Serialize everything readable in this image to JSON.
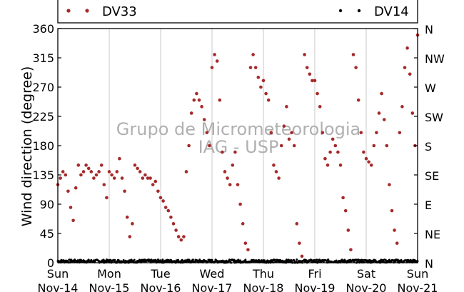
{
  "chart_data": {
    "type": "scatter",
    "ylabel": "Wind direction (degree)",
    "ylim": [
      0,
      360
    ],
    "yticks": [
      0,
      45,
      90,
      135,
      180,
      225,
      270,
      315,
      360
    ],
    "right_axis_labels": [
      "N",
      "NE",
      "E",
      "SE",
      "S",
      "SW",
      "W",
      "NW",
      "N"
    ],
    "x_ticks": [
      {
        "day": "Sun",
        "date": "Nov-14"
      },
      {
        "day": "Mon",
        "date": "Nov-15"
      },
      {
        "day": "Tue",
        "date": "Nov-16"
      },
      {
        "day": "Wed",
        "date": "Nov-17"
      },
      {
        "day": "Thu",
        "date": "Nov-18"
      },
      {
        "day": "Fri",
        "date": "Nov-19"
      },
      {
        "day": "Sat",
        "date": "Nov-20"
      },
      {
        "day": "Sun",
        "date": "Nov-21"
      }
    ],
    "xlim_days": [
      0,
      7
    ],
    "grid": "vertical",
    "legend_placement": "top",
    "watermark": [
      "Grupo de Micrometeorologia",
      "IAG - USP"
    ],
    "colors": {
      "DV33": "#a52a2a",
      "DV14": "#000000",
      "grid": "#c8c8c8",
      "watermark": "#b0b0b0"
    },
    "series": [
      {
        "name": "DV33",
        "color": "#a52a2a",
        "points_approx": [
          [
            0.0,
            120
          ],
          [
            0.05,
            130
          ],
          [
            0.1,
            140
          ],
          [
            0.15,
            135
          ],
          [
            0.2,
            110
          ],
          [
            0.25,
            85
          ],
          [
            0.3,
            65
          ],
          [
            0.35,
            115
          ],
          [
            0.4,
            150
          ],
          [
            0.45,
            135
          ],
          [
            0.5,
            140
          ],
          [
            0.55,
            150
          ],
          [
            0.6,
            145
          ],
          [
            0.65,
            140
          ],
          [
            0.7,
            130
          ],
          [
            0.75,
            135
          ],
          [
            0.8,
            140
          ],
          [
            0.85,
            150
          ],
          [
            0.9,
            120
          ],
          [
            0.95,
            100
          ],
          [
            1.0,
            140
          ],
          [
            1.05,
            135
          ],
          [
            1.1,
            130
          ],
          [
            1.15,
            140
          ],
          [
            1.2,
            160
          ],
          [
            1.25,
            130
          ],
          [
            1.3,
            110
          ],
          [
            1.35,
            70
          ],
          [
            1.4,
            40
          ],
          [
            1.45,
            60
          ],
          [
            1.5,
            150
          ],
          [
            1.55,
            145
          ],
          [
            1.6,
            140
          ],
          [
            1.65,
            130
          ],
          [
            1.7,
            135
          ],
          [
            1.75,
            130
          ],
          [
            1.8,
            130
          ],
          [
            1.85,
            120
          ],
          [
            1.9,
            125
          ],
          [
            1.95,
            110
          ],
          [
            2.0,
            100
          ],
          [
            2.05,
            95
          ],
          [
            2.1,
            85
          ],
          [
            2.15,
            80
          ],
          [
            2.2,
            70
          ],
          [
            2.25,
            60
          ],
          [
            2.3,
            50
          ],
          [
            2.35,
            40
          ],
          [
            2.4,
            35
          ],
          [
            2.45,
            40
          ],
          [
            2.5,
            140
          ],
          [
            2.55,
            180
          ],
          [
            2.6,
            230
          ],
          [
            2.65,
            250
          ],
          [
            2.7,
            260
          ],
          [
            2.75,
            250
          ],
          [
            2.8,
            240
          ],
          [
            2.85,
            220
          ],
          [
            2.9,
            200
          ],
          [
            2.95,
            180
          ],
          [
            3.0,
            300
          ],
          [
            3.05,
            320
          ],
          [
            3.1,
            310
          ],
          [
            3.15,
            250
          ],
          [
            3.2,
            170
          ],
          [
            3.25,
            140
          ],
          [
            3.3,
            130
          ],
          [
            3.35,
            120
          ],
          [
            3.4,
            150
          ],
          [
            3.45,
            170
          ],
          [
            3.5,
            120
          ],
          [
            3.55,
            90
          ],
          [
            3.6,
            60
          ],
          [
            3.65,
            30
          ],
          [
            3.7,
            20
          ],
          [
            3.75,
            300
          ],
          [
            3.8,
            320
          ],
          [
            3.85,
            300
          ],
          [
            3.9,
            285
          ],
          [
            3.95,
            270
          ],
          [
            4.0,
            280
          ],
          [
            4.05,
            260
          ],
          [
            4.1,
            250
          ],
          [
            4.15,
            200
          ],
          [
            4.2,
            150
          ],
          [
            4.25,
            140
          ],
          [
            4.3,
            130
          ],
          [
            4.35,
            180
          ],
          [
            4.4,
            210
          ],
          [
            4.45,
            240
          ],
          [
            4.5,
            190
          ],
          [
            4.55,
            200
          ],
          [
            4.6,
            180
          ],
          [
            4.65,
            60
          ],
          [
            4.7,
            30
          ],
          [
            4.75,
            10
          ],
          [
            4.8,
            320
          ],
          [
            4.85,
            300
          ],
          [
            4.9,
            290
          ],
          [
            4.95,
            280
          ],
          [
            5.0,
            280
          ],
          [
            5.05,
            260
          ],
          [
            5.1,
            240
          ],
          [
            5.15,
            200
          ],
          [
            5.2,
            160
          ],
          [
            5.25,
            150
          ],
          [
            5.3,
            170
          ],
          [
            5.35,
            190
          ],
          [
            5.4,
            180
          ],
          [
            5.45,
            170
          ],
          [
            5.5,
            150
          ],
          [
            5.55,
            100
          ],
          [
            5.6,
            80
          ],
          [
            5.65,
            50
          ],
          [
            5.7,
            20
          ],
          [
            5.75,
            320
          ],
          [
            5.8,
            300
          ],
          [
            5.85,
            250
          ],
          [
            5.9,
            200
          ],
          [
            5.95,
            170
          ],
          [
            6.0,
            160
          ],
          [
            6.05,
            155
          ],
          [
            6.1,
            150
          ],
          [
            6.15,
            180
          ],
          [
            6.2,
            200
          ],
          [
            6.25,
            230
          ],
          [
            6.3,
            260
          ],
          [
            6.35,
            220
          ],
          [
            6.4,
            180
          ],
          [
            6.45,
            120
          ],
          [
            6.5,
            80
          ],
          [
            6.55,
            50
          ],
          [
            6.6,
            30
          ],
          [
            6.65,
            200
          ],
          [
            6.7,
            240
          ],
          [
            6.75,
            300
          ],
          [
            6.8,
            330
          ],
          [
            6.85,
            290
          ],
          [
            6.9,
            230
          ],
          [
            6.95,
            180
          ],
          [
            7.0,
            350
          ]
        ]
      },
      {
        "name": "DV14",
        "color": "#000000",
        "range_approx": [
          0,
          8
        ]
      }
    ]
  }
}
